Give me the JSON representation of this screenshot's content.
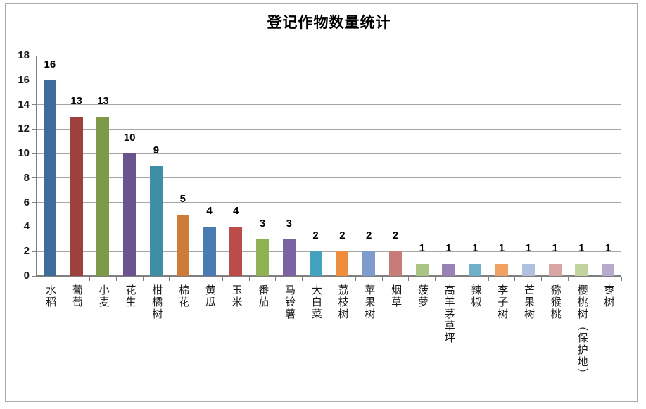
{
  "chart_data": {
    "type": "bar",
    "title": "登记作物数量统计",
    "categories": [
      "水稻",
      "葡萄",
      "小麦",
      "花生",
      "柑橘树",
      "棉花",
      "黄瓜",
      "玉米",
      "番茄",
      "马铃薯",
      "大白菜",
      "荔枝树",
      "苹果树",
      "烟草",
      "菠萝",
      "高羊茅草坪",
      "辣椒",
      "李子树",
      "芒果树",
      "猕猴桃",
      "樱桃树（保护地）",
      "枣树"
    ],
    "values": [
      16,
      13,
      13,
      10,
      9,
      5,
      4,
      4,
      3,
      3,
      2,
      2,
      2,
      2,
      1,
      1,
      1,
      1,
      1,
      1,
      1,
      1
    ],
    "bar_colors": [
      "#3F6A9C",
      "#9E403E",
      "#7E9A49",
      "#6A5490",
      "#3E8EA5",
      "#CC7B38",
      "#4A7BB4",
      "#BA4C4A",
      "#8FB153",
      "#7A63A2",
      "#45A2BF",
      "#EE8D3C",
      "#7E9CCB",
      "#C97B79",
      "#ABC383",
      "#9782B4",
      "#6FB0C8",
      "#F0A061",
      "#AFC1DF",
      "#D7A5A4",
      "#C2D3A0",
      "#B7AACC"
    ],
    "xlabel": "",
    "ylabel": "",
    "ylim": [
      0,
      18
    ],
    "yticks": [
      0,
      2,
      4,
      6,
      8,
      10,
      12,
      14,
      16,
      18
    ],
    "grid": "horizontal gridlines at each y tick",
    "legend_position": "none",
    "data_labels": "value shown above each bar",
    "x_label_orientation": "vertical",
    "colors": {
      "bar_label_text": "#000000",
      "axis_text": "#1A1A1A",
      "gridline": "#A6A6A6",
      "axis_line": "#7F7F7F",
      "chart_border": "#ABABAB",
      "background": "#FFFFFF"
    }
  }
}
